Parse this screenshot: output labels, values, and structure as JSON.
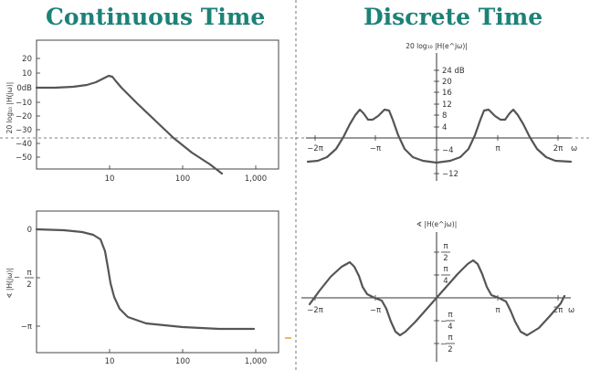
{
  "headings": {
    "continuous": "Continuous Time",
    "discrete": "Discrete Time"
  },
  "ct_mag": {
    "ylabel": "20 log₁₀ |H(jω)|",
    "yticks": [
      "20",
      "10",
      "0dB",
      "−10",
      "−20",
      "−30",
      "−40",
      "−50"
    ],
    "xticks": [
      "10",
      "100",
      "1,000"
    ]
  },
  "ct_phase": {
    "ylabel": "∢ |H(jω)|",
    "yticks": [
      "0",
      "−",
      "π",
      "2",
      "−π"
    ],
    "xticks": [
      "10",
      "100",
      "1,000"
    ]
  },
  "dt_mag": {
    "title": "20 log₁₀ |H(e^jω)|",
    "yticks": [
      "24 dB",
      "20",
      "16",
      "12",
      "8",
      "4",
      "−4",
      "−12"
    ],
    "xticks": [
      "−2π",
      "−π",
      "π",
      "2π"
    ],
    "xlabel": "ω"
  },
  "dt_phase": {
    "title": "∢ |H(e^jω)|",
    "yticks": [
      "π",
      "2",
      "π",
      "4",
      "−",
      "π",
      "4",
      "−",
      "π",
      "2"
    ],
    "xticks": [
      "−2π",
      "−π",
      "π",
      "2π"
    ],
    "xlabel": "ω"
  }
}
